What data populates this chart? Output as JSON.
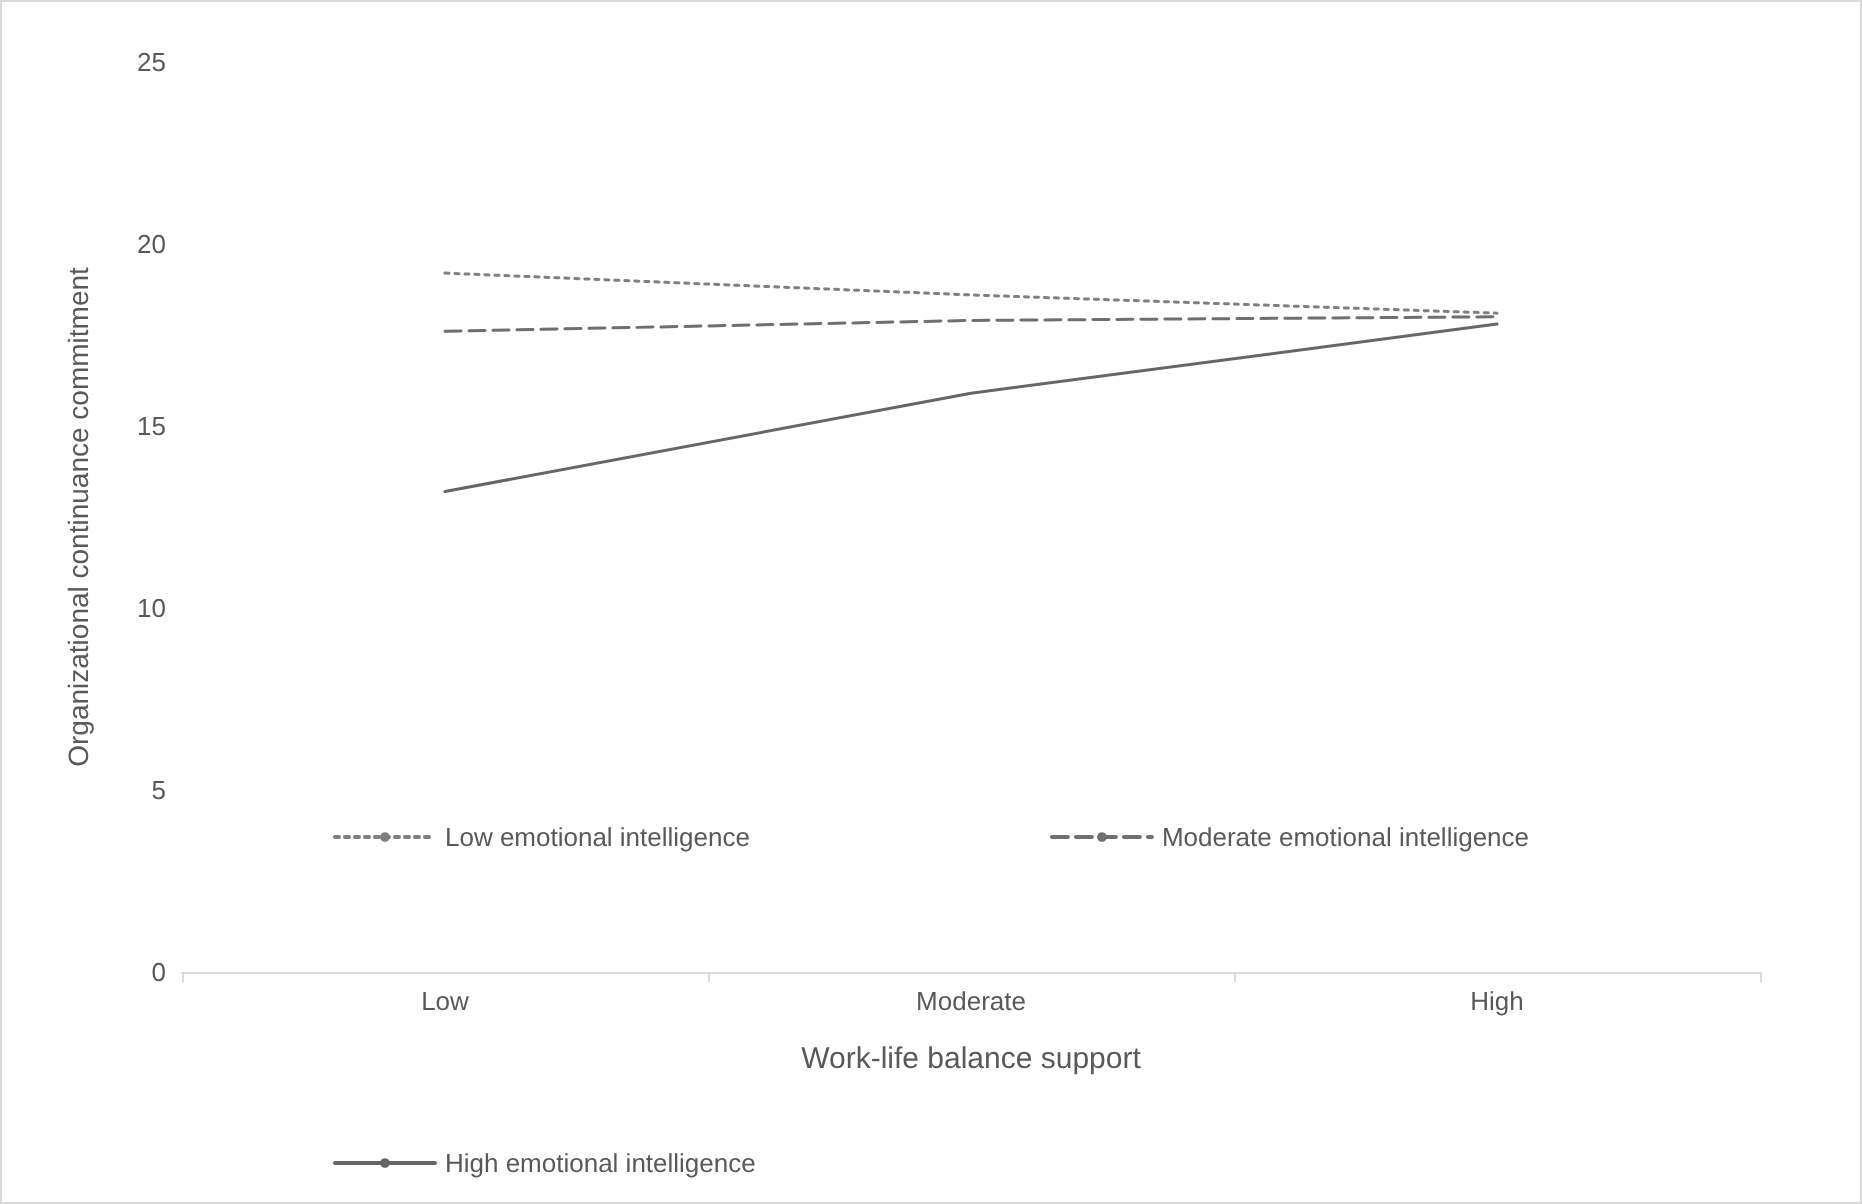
{
  "chart_data": {
    "type": "line",
    "xlabel": "Work-life balance support",
    "ylabel": "Organizational continuance commitment",
    "categories": [
      "Low",
      "Moderate",
      "High"
    ],
    "series": [
      {
        "name": "Low emotional intelligence",
        "color": "#7f7f7f",
        "line_style": "dotted",
        "values": [
          19.2,
          18.6,
          18.1
        ]
      },
      {
        "name": "Moderate emotional intelligence",
        "color": "#6f6f6f",
        "line_style": "dashed",
        "values": [
          17.6,
          17.9,
          18.0
        ]
      },
      {
        "name": "High emotional intelligence",
        "color": "#666666",
        "line_style": "solid",
        "values": [
          13.2,
          15.9,
          17.8
        ]
      }
    ],
    "ylim": [
      0,
      25
    ],
    "yticks": [
      0,
      5,
      10,
      15,
      20,
      25
    ],
    "grid": false,
    "legend": "bottom",
    "marker": "none"
  }
}
